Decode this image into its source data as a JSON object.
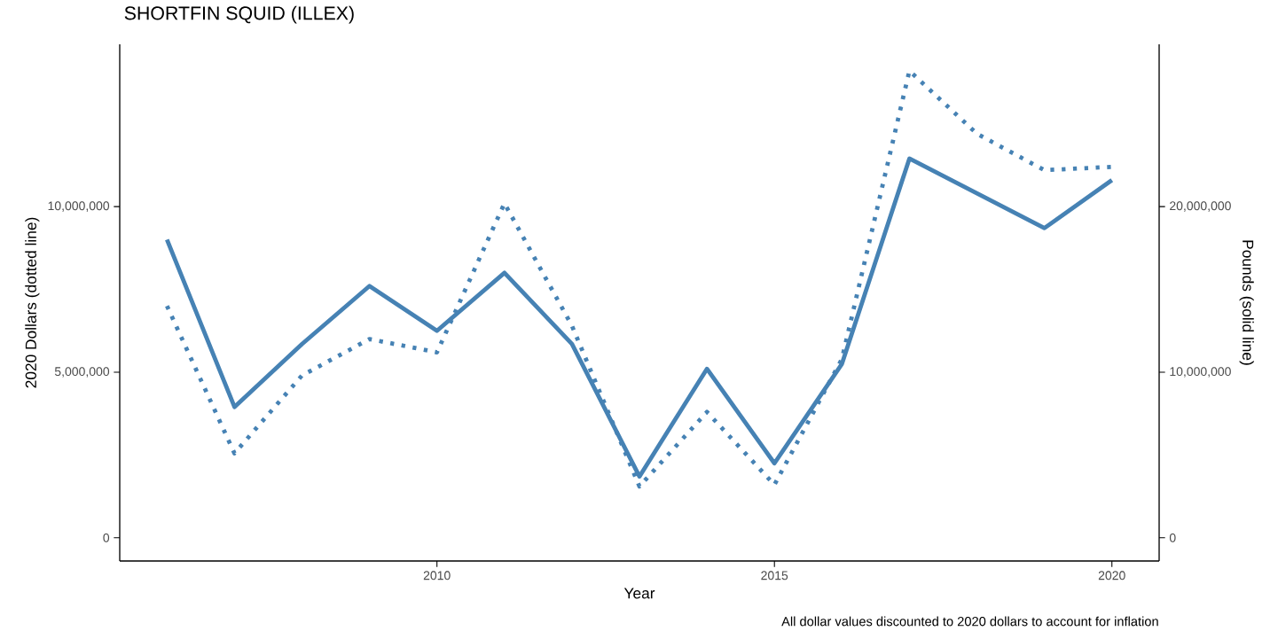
{
  "chart_data": {
    "type": "line",
    "title": "SHORTFIN SQUID (ILLEX)",
    "xlabel": "Year",
    "ylabel": "2020 Dollars (dotted line)",
    "y2label": "Pounds (solid line)",
    "annotations": [
      "All dollar values discounted to 2020 dollars to account for inflation"
    ],
    "x": [
      2006,
      2007,
      2008,
      2009,
      2010,
      2011,
      2012,
      2013,
      2014,
      2015,
      2016,
      2017,
      2018,
      2019,
      2020
    ],
    "series": [
      {
        "color": "#4682b4",
        "line_style": "dotted",
        "values": [
          7000000,
          2550000,
          4900000,
          6000000,
          5600000,
          10100000,
          6400000,
          1550000,
          3800000,
          1600000,
          5400000,
          14100000,
          12200000,
          11100000,
          11200000
        ]
      },
      {
        "color": "#4682b4",
        "line_style": "solid",
        "axis": "y2",
        "values": [
          18000000,
          7900000,
          11700000,
          15200000,
          12500000,
          16000000,
          11700000,
          3700000,
          10200000,
          4500000,
          10500000,
          22900000,
          20800000,
          18700000,
          21600000
        ]
      }
    ],
    "xlim": [
      2005.3,
      2020.7
    ],
    "xticks": [
      2010,
      2015,
      2020
    ],
    "ylim": [
      -700000,
      14900000
    ],
    "yticks": [
      {
        "value": 0,
        "label": "0"
      },
      {
        "value": 5000000,
        "label": "5,000,000"
      },
      {
        "value": 10000000,
        "label": "10,000,000"
      }
    ],
    "y2lim": [
      -1400000,
      29800000
    ],
    "y2ticks": [
      {
        "value": 0,
        "label": "0"
      },
      {
        "value": 10000000,
        "label": "10,000,000"
      },
      {
        "value": 20000000,
        "label": "20,000,000"
      }
    ]
  }
}
